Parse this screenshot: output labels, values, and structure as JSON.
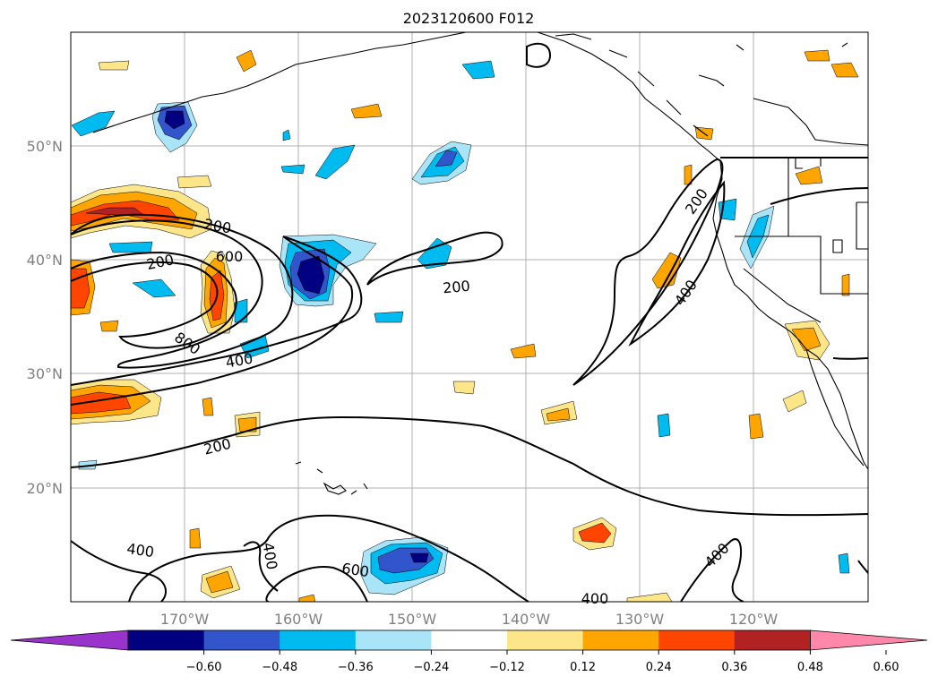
{
  "title": "2023120600 F012",
  "lon_labels": [
    "170°W",
    "160°W",
    "150°W",
    "140°W",
    "130°W",
    "120°W"
  ],
  "lat_labels": [
    "50°N",
    "40°N",
    "30°N",
    "20°N"
  ],
  "colorbar": {
    "ticks": [
      "−0.60",
      "−0.48",
      "−0.36",
      "−0.24",
      "−0.12",
      "0.12",
      "0.24",
      "0.36",
      "0.48",
      "0.60"
    ],
    "colors": [
      "#9933cc",
      "#000080",
      "#3355cc",
      "#00bbf0",
      "#aae4f8",
      "#ffffff",
      "#fde68a",
      "#ffa500",
      "#ff4500",
      "#b22222",
      "#ff88aa"
    ]
  },
  "contour_labels": [
    "200",
    "200",
    "600",
    "800",
    "400",
    "200",
    "200",
    "200",
    "400",
    "400",
    "400",
    "600",
    "400",
    "400"
  ],
  "map_extent": {
    "lon": [
      -180,
      -110
    ],
    "lat": [
      10,
      60
    ]
  },
  "grid": true
}
